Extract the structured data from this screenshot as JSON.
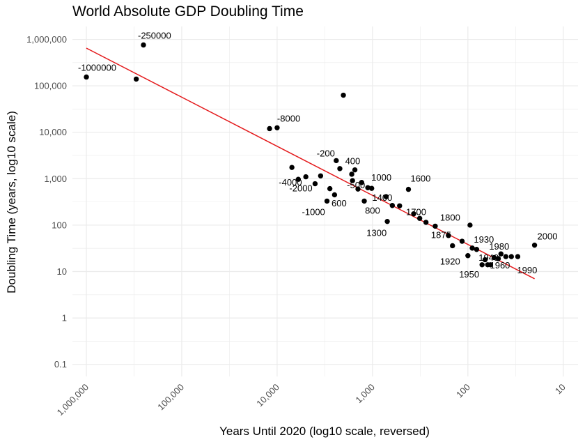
{
  "chart_data": {
    "type": "scatter",
    "title": "World Absolute GDP Doubling Time",
    "xlabel": "Years Until 2020 (log10 scale, reversed)",
    "ylabel": "Doubling Time (years, log10 scale)",
    "x_scale": "log10-reversed",
    "y_scale": "log10",
    "xlim": [
      1400000,
      7
    ],
    "ylim": [
      0.055,
      1900000
    ],
    "grid": true,
    "legend": "none",
    "x_ticks": [
      {
        "value": 1000000,
        "label": "1,000,000"
      },
      {
        "value": 100000,
        "label": "100,000"
      },
      {
        "value": 10000,
        "label": "10,000"
      },
      {
        "value": 1000,
        "label": "1,000"
      },
      {
        "value": 100,
        "label": "100"
      },
      {
        "value": 10,
        "label": "10"
      }
    ],
    "y_ticks": [
      {
        "value": 0.1,
        "label": "0.1"
      },
      {
        "value": 1,
        "label": "1"
      },
      {
        "value": 10,
        "label": "10"
      },
      {
        "value": 100,
        "label": "100"
      },
      {
        "value": 1000,
        "label": "1,000"
      },
      {
        "value": 10000,
        "label": "10,000"
      },
      {
        "value": 100000,
        "label": "100,000"
      },
      {
        "value": 1000000,
        "label": "1,000,000"
      }
    ],
    "colors": {
      "points": "#000000",
      "trend_line": "#e41a1c",
      "grid": "#ebebeb"
    },
    "trend_line": {
      "x": [
        1000000,
        20
      ],
      "y": [
        650000,
        7
      ]
    },
    "points": [
      {
        "x": 1000000,
        "y": 155000,
        "label": "-1000000"
      },
      {
        "x": 300000,
        "y": 140000,
        "label": ""
      },
      {
        "x": 252000,
        "y": 760000,
        "label": "-250000"
      },
      {
        "x": 12000,
        "y": 12000,
        "label": ""
      },
      {
        "x": 10000,
        "y": 12500,
        "label": "-8000"
      },
      {
        "x": 7000,
        "y": 1750,
        "label": ""
      },
      {
        "x": 6000,
        "y": 970,
        "label": "-4000"
      },
      {
        "x": 5000,
        "y": 1100,
        "label": ""
      },
      {
        "x": 4000,
        "y": 780,
        "label": "-2000"
      },
      {
        "x": 3500,
        "y": 1150,
        "label": ""
      },
      {
        "x": 3000,
        "y": 330,
        "label": "-1000"
      },
      {
        "x": 2800,
        "y": 610,
        "label": ""
      },
      {
        "x": 2500,
        "y": 450,
        "label": ""
      },
      {
        "x": 2400,
        "y": 2450,
        "label": "-200"
      },
      {
        "x": 2200,
        "y": 1650,
        "label": ""
      },
      {
        "x": 2020,
        "y": 63000,
        "label": ""
      },
      {
        "x": 1650,
        "y": 1250,
        "label": ""
      },
      {
        "x": 1620,
        "y": 910,
        "label": "-500"
      },
      {
        "x": 1530,
        "y": 1550,
        "label": "400"
      },
      {
        "x": 1420,
        "y": 600,
        "label": "600"
      },
      {
        "x": 1300,
        "y": 830,
        "label": ""
      },
      {
        "x": 1220,
        "y": 330,
        "label": ""
      },
      {
        "x": 1120,
        "y": 640,
        "label": "1000"
      },
      {
        "x": 1020,
        "y": 620,
        "label": ""
      },
      {
        "x": 720,
        "y": 410,
        "label": "1400"
      },
      {
        "x": 700,
        "y": 120,
        "label": "800"
      },
      {
        "x": 620,
        "y": 265,
        "label": "1300"
      },
      {
        "x": 520,
        "y": 260,
        "label": ""
      },
      {
        "x": 420,
        "y": 590,
        "label": "1600"
      },
      {
        "x": 370,
        "y": 175,
        "label": "1700"
      },
      {
        "x": 320,
        "y": 140,
        "label": ""
      },
      {
        "x": 275,
        "y": 115,
        "label": ""
      },
      {
        "x": 220,
        "y": 95,
        "label": "1800"
      },
      {
        "x": 160,
        "y": 60,
        "label": "1875"
      },
      {
        "x": 145,
        "y": 36,
        "label": ""
      },
      {
        "x": 115,
        "y": 45,
        "label": ""
      },
      {
        "x": 100,
        "y": 22,
        "label": "1920"
      },
      {
        "x": 95,
        "y": 100,
        "label": ""
      },
      {
        "x": 90,
        "y": 32,
        "label": ""
      },
      {
        "x": 81,
        "y": 30,
        "label": "1930"
      },
      {
        "x": 71,
        "y": 14,
        "label": "1950"
      },
      {
        "x": 66,
        "y": 18,
        "label": ""
      },
      {
        "x": 62,
        "y": 14,
        "label": ""
      },
      {
        "x": 58,
        "y": 14,
        "label": "1940"
      },
      {
        "x": 53,
        "y": 20,
        "label": ""
      },
      {
        "x": 48,
        "y": 19,
        "label": "1960"
      },
      {
        "x": 45,
        "y": 24,
        "label": ""
      },
      {
        "x": 40,
        "y": 21,
        "label": "1980"
      },
      {
        "x": 35,
        "y": 21,
        "label": ""
      },
      {
        "x": 30,
        "y": 21,
        "label": "1990"
      },
      {
        "x": 20,
        "y": 37,
        "label": "2000"
      }
    ]
  }
}
